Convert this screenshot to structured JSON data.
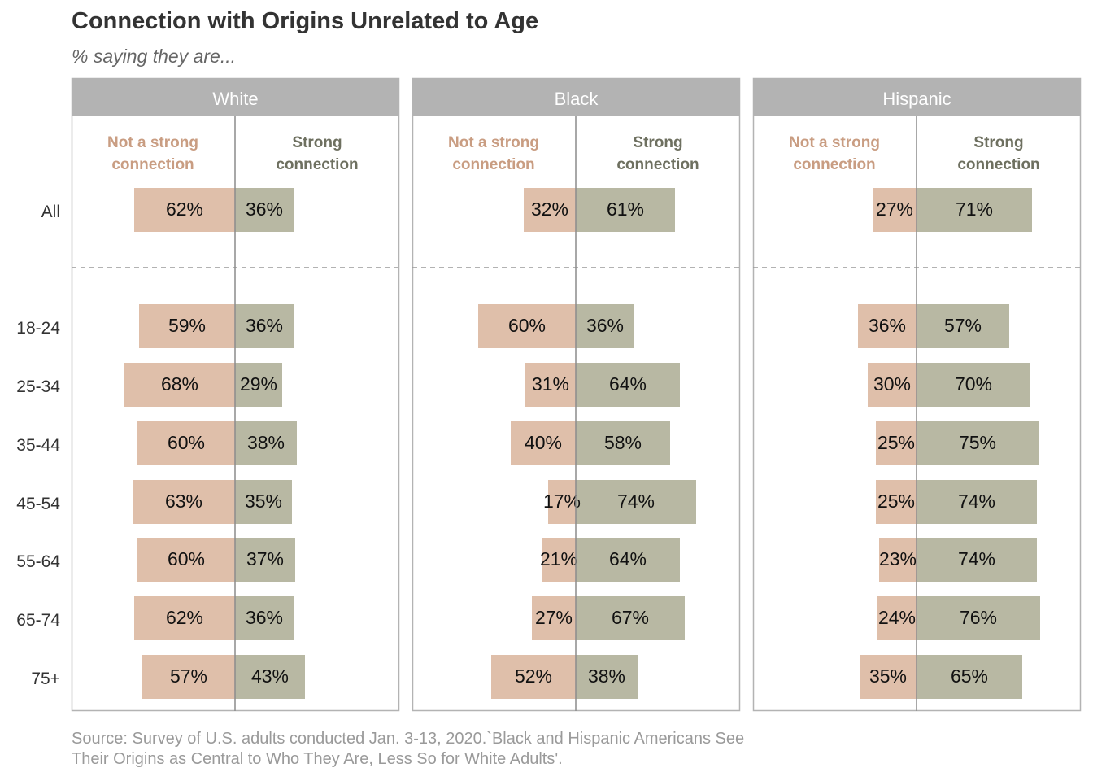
{
  "title": "Connection with Origins Unrelated to Age",
  "subtitle": "% saying they are...",
  "source": {
    "line1": "Source: Survey of U.S. adults conducted Jan. 3-13, 2020.`Black and Hispanic Americans See",
    "line2": "Their Origins as Central to Who They Are, Less So for White Adults'."
  },
  "colors": {
    "not_strong": "#dfbfaa",
    "strong": "#b8b8a3",
    "not_strong_label": "#c99d82",
    "strong_label": "#6e7060",
    "panel_header": "#b3b3b3",
    "panel_border": "#b3b3b3"
  },
  "chart_data": {
    "type": "bar",
    "orientation": "horizontal diverging",
    "panels": [
      "White",
      "Black",
      "Hispanic"
    ],
    "column_labels": {
      "not_strong": [
        "Not a strong",
        "connection"
      ],
      "strong": [
        "Strong",
        "connection"
      ]
    },
    "categories": [
      "All",
      "18-24",
      "25-34",
      "35-44",
      "45-54",
      "55-64",
      "65-74",
      "75+"
    ],
    "series": [
      {
        "panel": "White",
        "not_strong": [
          62,
          59,
          68,
          60,
          63,
          60,
          62,
          57
        ],
        "strong": [
          36,
          36,
          29,
          38,
          35,
          37,
          36,
          43
        ]
      },
      {
        "panel": "Black",
        "not_strong": [
          32,
          60,
          31,
          40,
          17,
          21,
          27,
          52
        ],
        "strong": [
          61,
          36,
          64,
          58,
          74,
          64,
          67,
          38
        ]
      },
      {
        "panel": "Hispanic",
        "not_strong": [
          27,
          36,
          30,
          25,
          25,
          23,
          24,
          35
        ],
        "strong": [
          71,
          57,
          70,
          75,
          74,
          74,
          76,
          65
        ]
      }
    ],
    "value_suffix": "%",
    "grid": false,
    "legend": "none"
  }
}
